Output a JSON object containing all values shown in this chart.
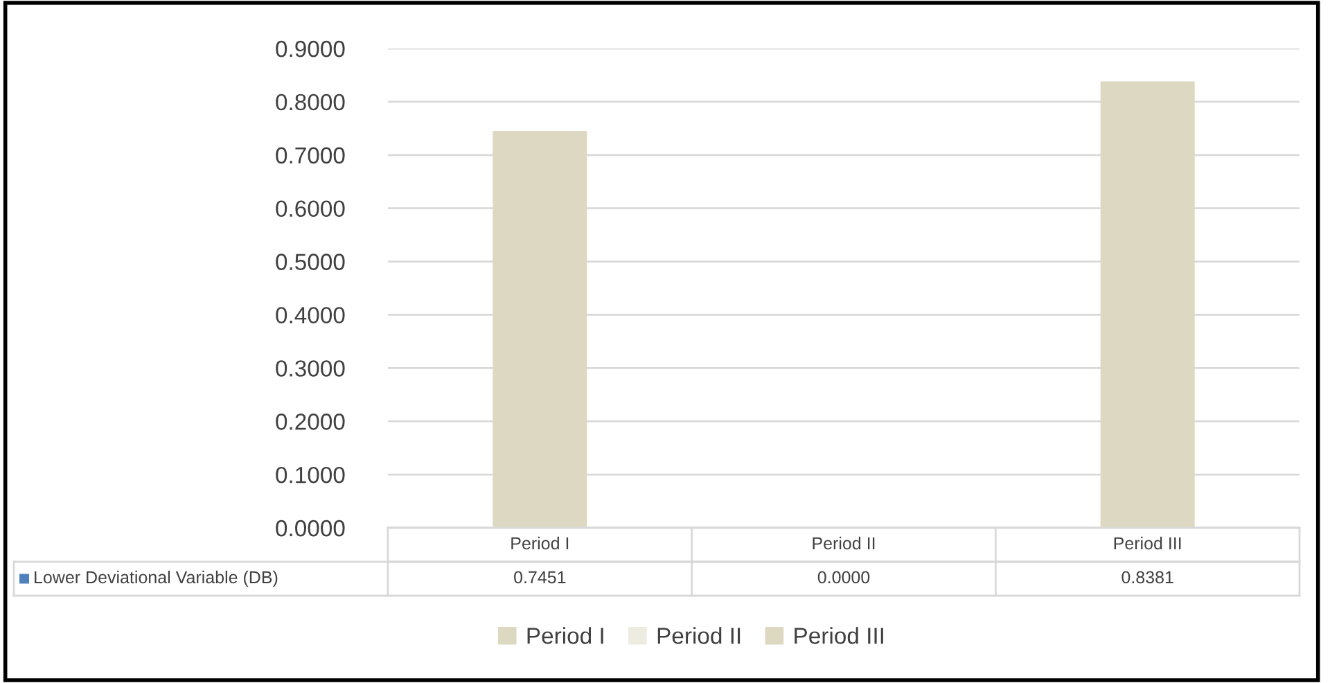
{
  "chart_data": {
    "type": "bar",
    "categories": [
      "Period I",
      "Period II",
      "Period III"
    ],
    "series": [
      {
        "name": "Lower Deviational Variable (DB)",
        "color": "#4f81bd",
        "colors": [
          "#ddd8c2",
          "#eeece1",
          "#ddd8c2"
        ],
        "values": [
          0.7451,
          0.0,
          0.8381
        ],
        "value_labels": [
          "0.7451",
          "0.0000",
          "0.8381"
        ]
      }
    ],
    "ylim": [
      0,
      0.9
    ],
    "yticks": [
      {
        "value": 0,
        "label": "0.0000"
      },
      {
        "value": 0.1,
        "label": "0.1000"
      },
      {
        "value": 0.2,
        "label": "0.2000"
      },
      {
        "value": 0.3,
        "label": "0.3000"
      },
      {
        "value": 0.4,
        "label": "0.4000"
      },
      {
        "value": 0.5,
        "label": "0.5000"
      },
      {
        "value": 0.6,
        "label": "0.6000"
      },
      {
        "value": 0.7,
        "label": "0.7000"
      },
      {
        "value": 0.8,
        "label": "0.8000"
      },
      {
        "value": 0.9,
        "label": "0.9000"
      }
    ],
    "grid": "y",
    "legend": "bottom",
    "tick_labels": "y"
  }
}
